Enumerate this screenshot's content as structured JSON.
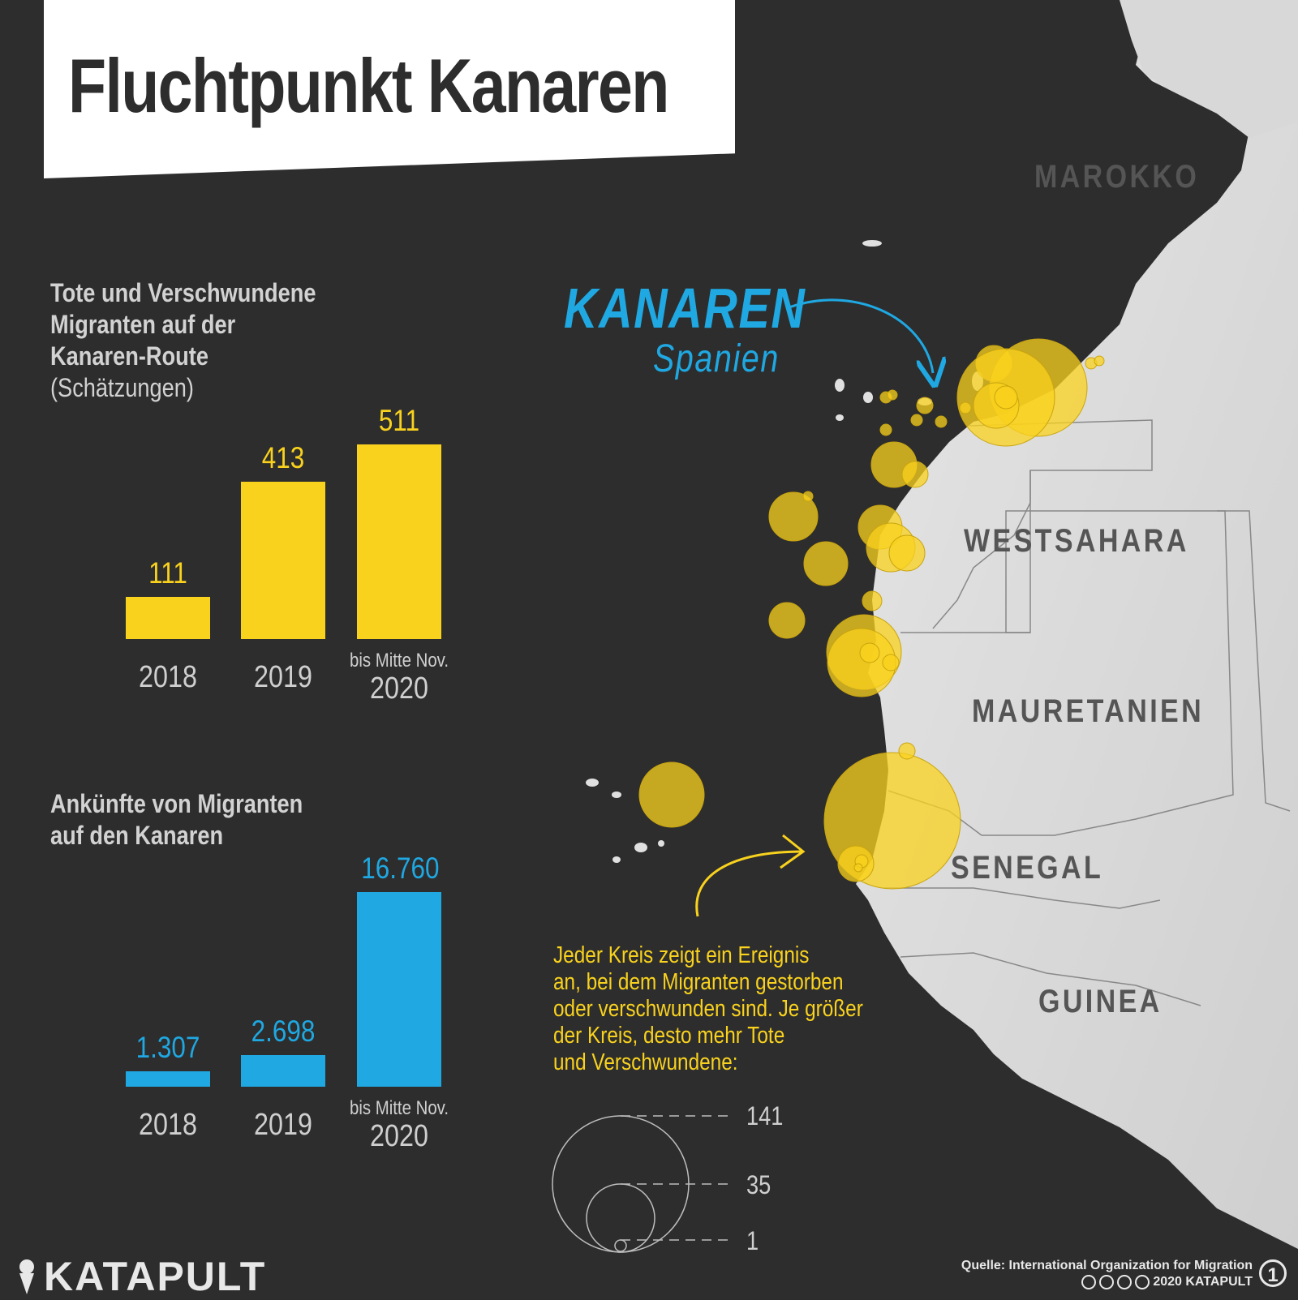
{
  "title": "Fluchtpunkt Kanaren",
  "map": {
    "countries": [
      {
        "id": "marokko",
        "label": "MAROKKO"
      },
      {
        "id": "westsahara",
        "label": "WESTSAHARA"
      },
      {
        "id": "mauretanien",
        "label": "MAURETANIEN"
      },
      {
        "id": "senegal",
        "label": "SENEGAL"
      },
      {
        "id": "guinea",
        "label": "GUINEA"
      }
    ],
    "canaries_label": "KANAREN",
    "canaries_sublabel": "Spanien",
    "event_color": "#f9d21e",
    "land_color": "#dcdcdc",
    "sea_color": "#2d2d2d"
  },
  "chart_data": [
    {
      "type": "bar",
      "title": "Tote und Verschwundene Migranten auf der Kanaren-Route",
      "subtitle": "(Schätzungen)",
      "categories": [
        "2018",
        "2019",
        "2020"
      ],
      "category_notes": [
        "",
        "",
        "bis Mitte Nov."
      ],
      "values": [
        111,
        413,
        511
      ],
      "value_labels": [
        "111",
        "413",
        "511"
      ],
      "ylim": [
        0,
        511
      ],
      "color": "#f9d21e"
    },
    {
      "type": "bar",
      "title": "Ankünfte von Migranten auf den Kanaren",
      "subtitle": "",
      "categories": [
        "2018",
        "2019",
        "2020"
      ],
      "category_notes": [
        "",
        "",
        "bis Mitte Nov."
      ],
      "values": [
        1307,
        2698,
        16760
      ],
      "value_labels": [
        "1.307",
        "2.698",
        "16.760"
      ],
      "ylim": [
        0,
        16760
      ],
      "color": "#1fa8e2"
    }
  ],
  "legend": {
    "text_lines": [
      "Jeder Kreis zeigt ein Ereignis",
      "an, bei dem Migranten gestorben",
      "oder verschwunden sind. Je größer",
      "der Kreis, desto mehr Tote",
      "und Verschwundene:"
    ],
    "sizes": [
      {
        "value": 141,
        "label": "141"
      },
      {
        "value": 35,
        "label": "35"
      },
      {
        "value": 1,
        "label": "1"
      }
    ]
  },
  "footer": {
    "logo": "KATAPULT",
    "source": "Quelle: International Organization for Migration",
    "license": "2020 KATAPULT",
    "page_number": "1"
  }
}
